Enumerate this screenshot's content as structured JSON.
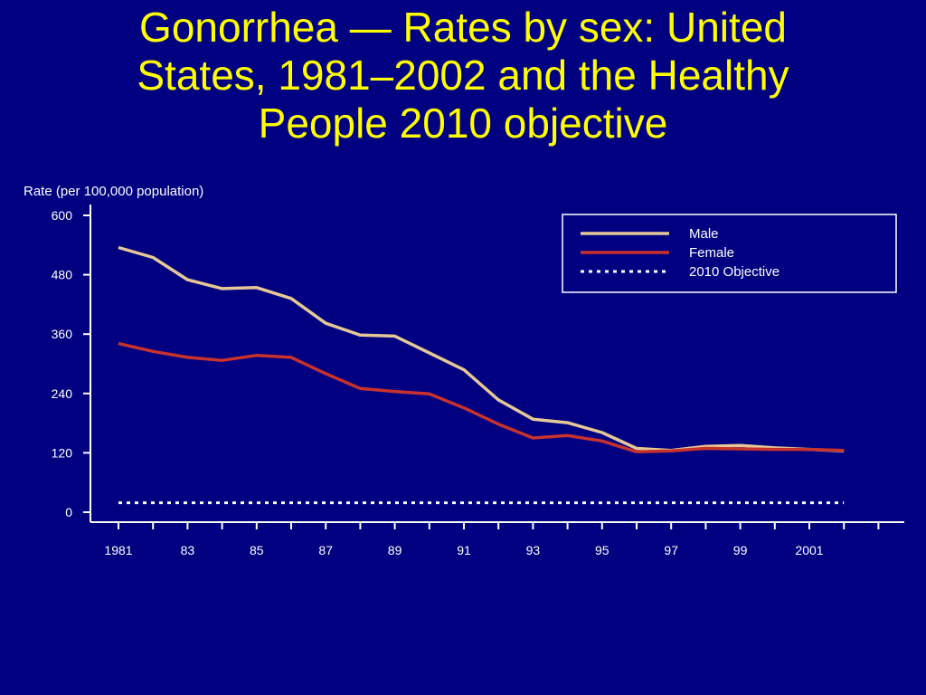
{
  "title": {
    "lines": [
      "Gonorrhea — Rates by sex: United",
      "States, 1981–2002 and the Healthy",
      "People 2010 objective"
    ]
  },
  "colors": {
    "background": "#000080",
    "title": "#ffff00",
    "axis": "#ffffff",
    "male": "#e6c896",
    "female": "#c8322d",
    "objective": "#ffffff"
  },
  "chart_data": {
    "type": "line",
    "title": "Gonorrhea — Rates by sex: United States, 1981–2002 and the Healthy People 2010 objective",
    "ylabel": "Rate (per 100,000 population)",
    "xlabel": "",
    "ylim": [
      0,
      600
    ],
    "yticks": [
      0,
      120,
      240,
      360,
      480,
      600
    ],
    "xlim": [
      1981,
      2003
    ],
    "x": [
      1981,
      1982,
      1983,
      1984,
      1985,
      1986,
      1987,
      1988,
      1989,
      1990,
      1991,
      1992,
      1993,
      1994,
      1995,
      1996,
      1997,
      1998,
      1999,
      2000,
      2001,
      2002
    ],
    "xtick_labels": [
      {
        "x": 1981,
        "label": "1981"
      },
      {
        "x": 1983,
        "label": "83"
      },
      {
        "x": 1985,
        "label": "85"
      },
      {
        "x": 1987,
        "label": "87"
      },
      {
        "x": 1989,
        "label": "89"
      },
      {
        "x": 1991,
        "label": "91"
      },
      {
        "x": 1993,
        "label": "93"
      },
      {
        "x": 1995,
        "label": "95"
      },
      {
        "x": 1997,
        "label": "97"
      },
      {
        "x": 1999,
        "label": "99"
      },
      {
        "x": 2001,
        "label": "2001"
      }
    ],
    "series": [
      {
        "name": "Male",
        "style": "solid",
        "values": [
          535,
          515,
          470,
          452,
          454,
          432,
          382,
          358,
          356,
          322,
          288,
          227,
          188,
          181,
          161,
          129,
          125,
          133,
          135,
          130,
          127,
          124
        ]
      },
      {
        "name": "Female",
        "style": "solid",
        "values": [
          341,
          325,
          313,
          307,
          317,
          313,
          280,
          250,
          244,
          239,
          211,
          178,
          150,
          155,
          144,
          122,
          124,
          129,
          128,
          127,
          127,
          125
        ]
      },
      {
        "name": "2010 Objective",
        "style": "dotted",
        "values": [
          19,
          19,
          19,
          19,
          19,
          19,
          19,
          19,
          19,
          19,
          19,
          19,
          19,
          19,
          19,
          19,
          19,
          19,
          19,
          19,
          19,
          19
        ]
      }
    ],
    "grid": false,
    "legend_position": "top-right"
  }
}
